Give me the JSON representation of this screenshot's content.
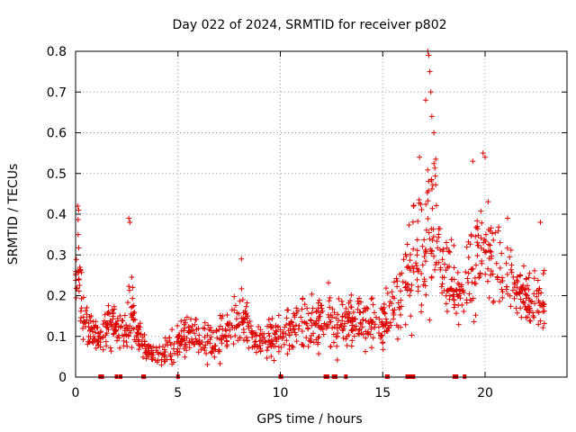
{
  "chart_data": {
    "type": "scatter",
    "title": "Day 022 of 2024, SRMTID for receiver p802",
    "xlabel": "GPS time / hours",
    "ylabel": "SRMTID / TECUs",
    "xlim": [
      0,
      24
    ],
    "ylim": [
      0,
      0.8
    ],
    "x_ticks": [
      "0",
      "5",
      "10",
      "15",
      "20"
    ],
    "y_ticks": [
      "0",
      "0.1",
      "0.2",
      "0.3",
      "0.4",
      "0.5",
      "0.6",
      "0.7",
      "0.8"
    ],
    "grid": true,
    "marker": "+",
    "color": "#dd0000",
    "trend": {
      "x": [
        0.0,
        0.1,
        0.2,
        0.4,
        0.6,
        0.8,
        1.0,
        1.3,
        1.6,
        1.9,
        2.2,
        2.5,
        2.7,
        2.9,
        3.1,
        3.4,
        3.7,
        4.0,
        4.3,
        4.6,
        5.0,
        5.4,
        5.8,
        6.2,
        6.6,
        7.0,
        7.4,
        7.8,
        8.2,
        8.6,
        9.0,
        9.4,
        9.8,
        10.2,
        10.6,
        11.0,
        11.4,
        11.8,
        12.2,
        12.6,
        13.0,
        13.4,
        13.8,
        14.2,
        14.6,
        15.0,
        15.3,
        15.6,
        15.9,
        16.2,
        16.5,
        16.8,
        17.1,
        17.3,
        17.5,
        17.7,
        18.0,
        18.3,
        18.6,
        18.9,
        19.2,
        19.5,
        19.8,
        20.0,
        20.3,
        20.6,
        20.9,
        21.2,
        21.5,
        21.8,
        22.1,
        22.4,
        22.7,
        22.9
      ],
      "y": [
        0.2,
        0.3,
        0.24,
        0.15,
        0.12,
        0.11,
        0.1,
        0.1,
        0.14,
        0.12,
        0.11,
        0.12,
        0.16,
        0.13,
        0.1,
        0.07,
        0.06,
        0.055,
        0.06,
        0.07,
        0.09,
        0.1,
        0.1,
        0.09,
        0.09,
        0.1,
        0.1,
        0.14,
        0.15,
        0.1,
        0.09,
        0.09,
        0.1,
        0.11,
        0.12,
        0.12,
        0.12,
        0.14,
        0.13,
        0.12,
        0.13,
        0.14,
        0.13,
        0.13,
        0.14,
        0.12,
        0.16,
        0.17,
        0.2,
        0.24,
        0.3,
        0.3,
        0.3,
        0.4,
        0.45,
        0.33,
        0.26,
        0.24,
        0.2,
        0.2,
        0.23,
        0.28,
        0.34,
        0.32,
        0.28,
        0.26,
        0.25,
        0.24,
        0.22,
        0.2,
        0.19,
        0.19,
        0.18,
        0.18
      ],
      "spread": [
        0.04,
        0.08,
        0.06,
        0.04,
        0.03,
        0.03,
        0.03,
        0.03,
        0.05,
        0.04,
        0.03,
        0.05,
        0.07,
        0.05,
        0.03,
        0.02,
        0.02,
        0.02,
        0.025,
        0.03,
        0.035,
        0.035,
        0.035,
        0.035,
        0.035,
        0.035,
        0.04,
        0.05,
        0.05,
        0.04,
        0.035,
        0.035,
        0.04,
        0.04,
        0.045,
        0.045,
        0.045,
        0.05,
        0.05,
        0.045,
        0.05,
        0.05,
        0.045,
        0.045,
        0.05,
        0.04,
        0.05,
        0.06,
        0.07,
        0.09,
        0.11,
        0.12,
        0.14,
        0.16,
        0.14,
        0.1,
        0.07,
        0.06,
        0.05,
        0.05,
        0.07,
        0.1,
        0.11,
        0.1,
        0.08,
        0.07,
        0.07,
        0.06,
        0.05,
        0.05,
        0.05,
        0.05,
        0.05,
        0.05
      ]
    },
    "peaks": [
      {
        "x": 0.1,
        "y": 0.42
      },
      {
        "x": 0.15,
        "y": 0.41
      },
      {
        "x": 2.6,
        "y": 0.39
      },
      {
        "x": 2.65,
        "y": 0.38
      },
      {
        "x": 8.1,
        "y": 0.29
      },
      {
        "x": 16.5,
        "y": 0.42
      },
      {
        "x": 16.8,
        "y": 0.54
      },
      {
        "x": 17.2,
        "y": 0.8
      },
      {
        "x": 17.25,
        "y": 0.79
      },
      {
        "x": 17.3,
        "y": 0.75
      },
      {
        "x": 17.35,
        "y": 0.7
      },
      {
        "x": 17.4,
        "y": 0.64
      },
      {
        "x": 17.5,
        "y": 0.6
      },
      {
        "x": 17.1,
        "y": 0.68
      },
      {
        "x": 19.4,
        "y": 0.53
      },
      {
        "x": 19.9,
        "y": 0.55
      },
      {
        "x": 20.0,
        "y": 0.54
      },
      {
        "x": 21.1,
        "y": 0.39
      },
      {
        "x": 22.7,
        "y": 0.38
      }
    ],
    "zero_marks_x": [
      1.2,
      1.3,
      2.0,
      2.2,
      3.3,
      3.35,
      5.0,
      10.0,
      10.05,
      12.2,
      12.3,
      12.6,
      12.7,
      13.2,
      15.2,
      15.25,
      16.2,
      16.3,
      16.4,
      16.5,
      18.5,
      18.6,
      19.0
    ]
  }
}
